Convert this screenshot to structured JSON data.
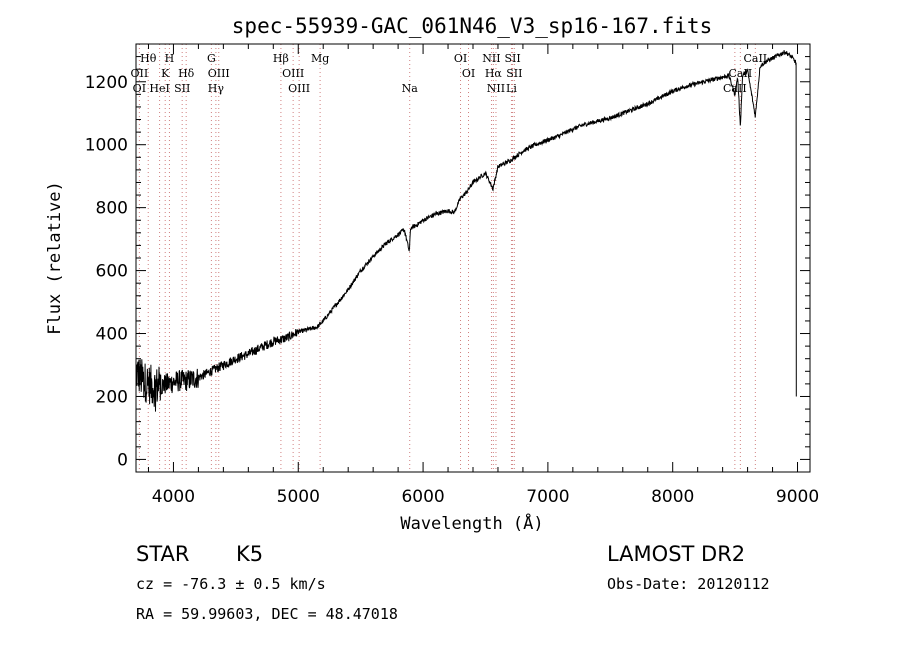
{
  "chart_data": {
    "type": "line",
    "title": "spec-55939-GAC_061N46_V3_sp16-167.fits",
    "xlabel": "Wavelength (Å)",
    "ylabel": "Flux (relative)",
    "xlim": [
      3700,
      9100
    ],
    "ylim": [
      -40,
      1320
    ],
    "xticks": [
      4000,
      5000,
      6000,
      7000,
      8000,
      9000
    ],
    "xtick_labels": [
      "4000",
      "5000",
      "6000",
      "7000",
      "8000",
      "9000"
    ],
    "yticks": [
      0,
      200,
      400,
      600,
      800,
      1000,
      1200
    ],
    "ytick_labels": [
      "0",
      "200",
      "400",
      "600",
      "800",
      "1000",
      "1200"
    ],
    "grid": false,
    "series": [
      {
        "x": [
          3700,
          3760,
          3800,
          3850,
          3900,
          3950,
          4000,
          4050,
          4100,
          4150,
          4200,
          4250,
          4300,
          4350,
          4400,
          4450,
          4500,
          4600,
          4700,
          4800,
          4850,
          4900,
          4950,
          5000,
          5050,
          5100,
          5150,
          5200,
          5300,
          5400,
          5500,
          5600,
          5700,
          5800,
          5850,
          5890,
          5900,
          5950,
          6000,
          6100,
          6200,
          6250,
          6300,
          6350,
          6400,
          6450,
          6500,
          6560,
          6600,
          6650,
          6700,
          6750,
          6800,
          6900,
          7000,
          7100,
          7200,
          7300,
          7400,
          7500,
          7600,
          7700,
          7800,
          7900,
          8000,
          8100,
          8200,
          8300,
          8400,
          8450,
          8498,
          8520,
          8542,
          8560,
          8600,
          8662,
          8700,
          8750,
          8800,
          8850,
          8900,
          8950,
          8990
        ],
        "y": [
          280,
          250,
          240,
          230,
          235,
          240,
          245,
          250,
          250,
          255,
          260,
          270,
          280,
          290,
          300,
          310,
          320,
          335,
          355,
          375,
          380,
          385,
          395,
          405,
          410,
          415,
          420,
          440,
          490,
          540,
          600,
          645,
          685,
          715,
          730,
          660,
          735,
          745,
          760,
          780,
          790,
          785,
          830,
          850,
          880,
          895,
          910,
          860,
          930,
          940,
          950,
          965,
          980,
          1000,
          1015,
          1030,
          1050,
          1065,
          1075,
          1085,
          1100,
          1115,
          1130,
          1150,
          1170,
          1185,
          1195,
          1205,
          1215,
          1220,
          1160,
          1215,
          1060,
          1220,
          1235,
          1090,
          1250,
          1265,
          1275,
          1285,
          1295,
          1280,
          1260
        ]
      }
    ],
    "line_markers": [
      {
        "label": "Hθ",
        "x": 3798,
        "row": 0
      },
      {
        "label": "H",
        "x": 3968,
        "row": 0
      },
      {
        "label": "Hδ",
        "x": 4102,
        "row": 1
      },
      {
        "label": "K",
        "x": 3934,
        "row": 1
      },
      {
        "label": "OII",
        "x": 3727,
        "row": 1
      },
      {
        "label": "OI",
        "x": 3727,
        "row": 2
      },
      {
        "label": "HeI",
        "x": 3889,
        "row": 2
      },
      {
        "label": "SII",
        "x": 4070,
        "row": 2
      },
      {
        "label": "G",
        "x": 4304,
        "row": 0
      },
      {
        "label": "OIII",
        "x": 4363,
        "row": 1
      },
      {
        "label": "Hγ",
        "x": 4340,
        "row": 2
      },
      {
        "label": "Hβ",
        "x": 4861,
        "row": 0
      },
      {
        "label": "OIII",
        "x": 4959,
        "row": 1
      },
      {
        "label": "OIII",
        "x": 5007,
        "row": 2
      },
      {
        "label": "Mg",
        "x": 5175,
        "row": 0
      },
      {
        "label": "Na",
        "x": 5893,
        "row": 2
      },
      {
        "label": "OI",
        "x": 6300,
        "row": 0
      },
      {
        "label": "OI",
        "x": 6364,
        "row": 1
      },
      {
        "label": "NII",
        "x": 6548,
        "row": 0
      },
      {
        "label": "SII",
        "x": 6717,
        "row": 0
      },
      {
        "label": "Hα",
        "x": 6563,
        "row": 1
      },
      {
        "label": "SII",
        "x": 6731,
        "row": 1
      },
      {
        "label": "NII",
        "x": 6584,
        "row": 2
      },
      {
        "label": "Li",
        "x": 6708,
        "row": 2
      },
      {
        "label": "CaII",
        "x": 8662,
        "row": 0
      },
      {
        "label": "CaII",
        "x": 8542,
        "row": 1
      },
      {
        "label": "CaII",
        "x": 8498,
        "row": 2
      }
    ]
  },
  "info": {
    "object_type": "STAR",
    "subclass": "K5",
    "survey": "LAMOST DR2",
    "velocity": "cz = -76.3 ± 0.5 km/s",
    "obs_date": "Obs-Date: 20120112",
    "coordinates": "RA =  59.99603, DEC =  48.47018"
  }
}
